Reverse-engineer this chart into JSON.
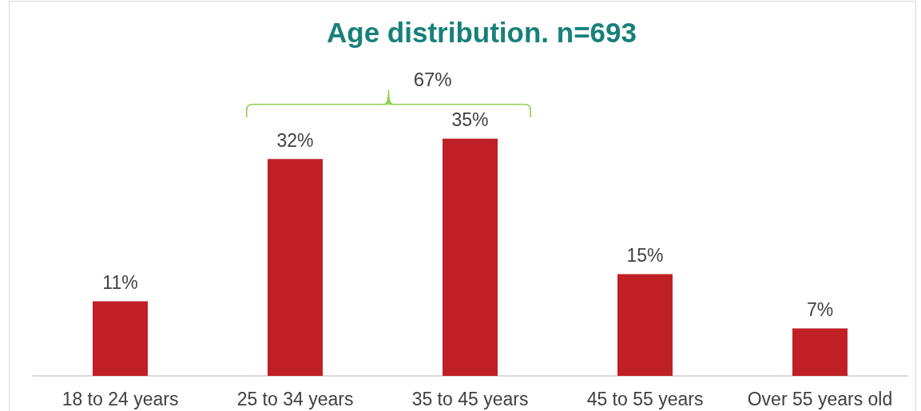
{
  "chart_data": {
    "type": "bar",
    "title": "Age distribution. n=693",
    "categories": [
      "18 to 24 years",
      "25 to 34 years",
      "35 to 45 years",
      "45 to 55 years",
      "Over 55 years old"
    ],
    "values": [
      11,
      32,
      35,
      15,
      7
    ],
    "value_labels": [
      "11%",
      "32%",
      "35%",
      "15%",
      "7%"
    ],
    "color": "#c01f26",
    "annotations": [
      "67%"
    ]
  }
}
